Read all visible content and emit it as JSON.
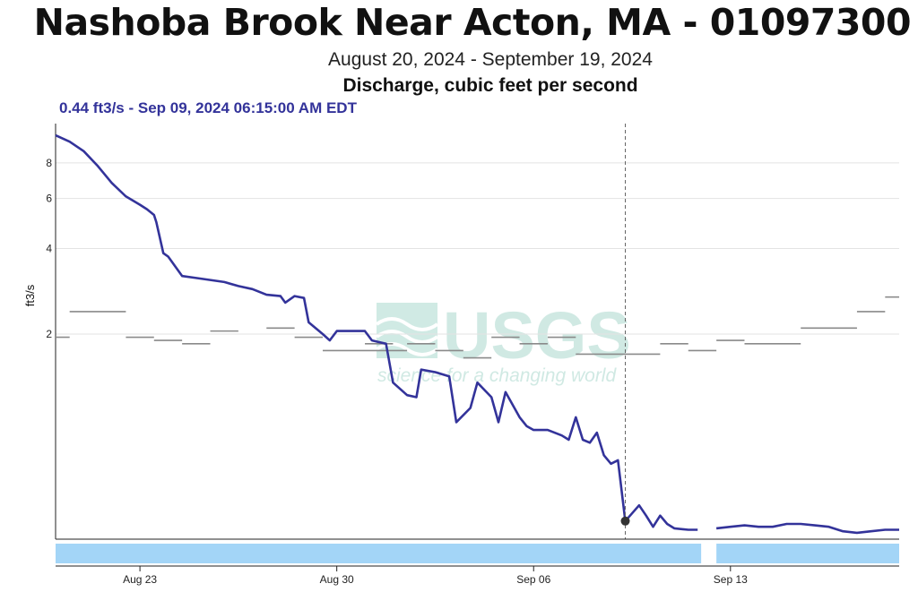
{
  "header": {
    "title": "Nashoba Brook Near Acton, MA - 01097300",
    "subtitle": "August 20, 2024 - September 19, 2024",
    "parameter": "Discharge, cubic feet per second"
  },
  "readout": {
    "text": "0.44 ft3/s - Sep 09, 2024 06:15:00 AM EDT",
    "value": 0.44,
    "time": "2024-09-09T06:15"
  },
  "watermark": {
    "text": "USGS",
    "tagline": "science for a changing world"
  },
  "colors": {
    "series": "#33339a",
    "median": "#8a8a8a",
    "approval_bar": "#a3d5f7",
    "gridline": "#e3e3e3",
    "crosshair": "#666666",
    "watermark": "#c8e6df"
  },
  "chart_data": {
    "type": "line",
    "y_scale": "log",
    "ylabel": "ft3/s",
    "ylim": [
      0.38,
      11
    ],
    "xlim": [
      "2024-08-20T00:00",
      "2024-09-19T00:00"
    ],
    "y_ticks": [
      2,
      4,
      6,
      8
    ],
    "x_ticks": [
      {
        "label": "Aug 23",
        "date": "2024-08-23T00:00"
      },
      {
        "label": "Aug 30",
        "date": "2024-08-30T00:00"
      },
      {
        "label": "Sep 06",
        "date": "2024-09-06T00:00"
      },
      {
        "label": "Sep 13",
        "date": "2024-09-13T00:00"
      }
    ],
    "grid": true,
    "series": [
      {
        "points": [
          [
            "2024-08-20T00:00",
            10.0
          ],
          [
            "2024-08-20T12:00",
            9.5
          ],
          [
            "2024-08-21T00:00",
            8.8
          ],
          [
            "2024-08-21T12:00",
            7.8
          ],
          [
            "2024-08-22T00:00",
            6.8
          ],
          [
            "2024-08-22T12:00",
            6.1
          ],
          [
            "2024-08-23T00:00",
            5.7
          ],
          [
            "2024-08-23T06:00",
            5.5
          ],
          [
            "2024-08-23T12:00",
            5.25
          ],
          [
            "2024-08-23T14:00",
            4.95
          ],
          [
            "2024-08-23T20:00",
            3.85
          ],
          [
            "2024-08-24T00:00",
            3.75
          ],
          [
            "2024-08-24T12:00",
            3.2
          ],
          [
            "2024-08-25T00:00",
            3.15
          ],
          [
            "2024-08-25T12:00",
            3.1
          ],
          [
            "2024-08-26T00:00",
            3.05
          ],
          [
            "2024-08-26T12:00",
            2.95
          ],
          [
            "2024-08-27T00:00",
            2.88
          ],
          [
            "2024-08-27T12:00",
            2.75
          ],
          [
            "2024-08-28T00:00",
            2.72
          ],
          [
            "2024-08-28T04:00",
            2.58
          ],
          [
            "2024-08-28T12:00",
            2.72
          ],
          [
            "2024-08-28T20:00",
            2.68
          ],
          [
            "2024-08-29T00:00",
            2.2
          ],
          [
            "2024-08-29T12:00",
            2.0
          ],
          [
            "2024-08-29T18:00",
            1.9
          ],
          [
            "2024-08-30T00:00",
            2.05
          ],
          [
            "2024-08-30T12:00",
            2.05
          ],
          [
            "2024-08-31T00:00",
            2.05
          ],
          [
            "2024-08-31T06:00",
            1.9
          ],
          [
            "2024-08-31T18:00",
            1.85
          ],
          [
            "2024-09-01T00:00",
            1.35
          ],
          [
            "2024-09-01T12:00",
            1.22
          ],
          [
            "2024-09-01T20:00",
            1.2
          ],
          [
            "2024-09-02T00:00",
            1.5
          ],
          [
            "2024-09-02T12:00",
            1.47
          ],
          [
            "2024-09-03T00:00",
            1.42
          ],
          [
            "2024-09-03T06:00",
            0.98
          ],
          [
            "2024-09-03T18:00",
            1.1
          ],
          [
            "2024-09-04T00:00",
            1.35
          ],
          [
            "2024-09-04T12:00",
            1.2
          ],
          [
            "2024-09-04T18:00",
            0.98
          ],
          [
            "2024-09-05T00:00",
            1.25
          ],
          [
            "2024-09-05T12:00",
            1.02
          ],
          [
            "2024-09-05T18:00",
            0.95
          ],
          [
            "2024-09-06T00:00",
            0.92
          ],
          [
            "2024-09-06T12:00",
            0.92
          ],
          [
            "2024-09-07T00:00",
            0.88
          ],
          [
            "2024-09-07T06:00",
            0.85
          ],
          [
            "2024-09-07T12:00",
            1.02
          ],
          [
            "2024-09-07T18:00",
            0.85
          ],
          [
            "2024-09-08T00:00",
            0.83
          ],
          [
            "2024-09-08T06:00",
            0.9
          ],
          [
            "2024-09-08T12:00",
            0.75
          ],
          [
            "2024-09-08T18:00",
            0.7
          ],
          [
            "2024-09-09T00:00",
            0.72
          ],
          [
            "2024-09-09T06:15",
            0.44
          ],
          [
            "2024-09-09T18:00",
            0.5
          ],
          [
            "2024-09-10T00:00",
            0.46
          ],
          [
            "2024-09-10T06:00",
            0.42
          ],
          [
            "2024-09-10T12:00",
            0.46
          ],
          [
            "2024-09-10T18:00",
            0.43
          ],
          [
            "2024-09-11T00:00",
            0.415
          ],
          [
            "2024-09-11T12:00",
            0.41
          ],
          [
            "2024-09-11T20:00",
            0.41
          ]
        ]
      },
      {
        "points": [
          [
            "2024-09-12T12:00",
            0.415
          ],
          [
            "2024-09-13T00:00",
            0.42
          ],
          [
            "2024-09-13T12:00",
            0.425
          ],
          [
            "2024-09-14T00:00",
            0.42
          ],
          [
            "2024-09-14T12:00",
            0.42
          ],
          [
            "2024-09-15T00:00",
            0.43
          ],
          [
            "2024-09-15T12:00",
            0.43
          ],
          [
            "2024-09-16T00:00",
            0.425
          ],
          [
            "2024-09-16T12:00",
            0.42
          ],
          [
            "2024-09-17T00:00",
            0.405
          ],
          [
            "2024-09-17T12:00",
            0.4
          ],
          [
            "2024-09-18T00:00",
            0.405
          ],
          [
            "2024-09-18T12:00",
            0.41
          ],
          [
            "2024-09-19T00:00",
            0.41
          ]
        ]
      }
    ],
    "median_segments": [
      {
        "start": "2024-08-20T00:00",
        "end": "2024-08-20T12:00",
        "value": 1.95
      },
      {
        "start": "2024-08-20T12:00",
        "end": "2024-08-22T12:00",
        "value": 2.4
      },
      {
        "start": "2024-08-22T12:00",
        "end": "2024-08-23T12:00",
        "value": 1.95
      },
      {
        "start": "2024-08-23T12:00",
        "end": "2024-08-24T12:00",
        "value": 1.9
      },
      {
        "start": "2024-08-24T12:00",
        "end": "2024-08-25T12:00",
        "value": 1.85
      },
      {
        "start": "2024-08-25T12:00",
        "end": "2024-08-26T12:00",
        "value": 2.05
      },
      {
        "start": "2024-08-27T12:00",
        "end": "2024-08-28T12:00",
        "value": 2.1
      },
      {
        "start": "2024-08-28T12:00",
        "end": "2024-08-29T12:00",
        "value": 1.95
      },
      {
        "start": "2024-08-29T12:00",
        "end": "2024-09-01T12:00",
        "value": 1.75
      },
      {
        "start": "2024-08-31T00:00",
        "end": "2024-09-01T00:00",
        "value": 1.85
      },
      {
        "start": "2024-09-01T12:00",
        "end": "2024-09-02T12:00",
        "value": 1.85
      },
      {
        "start": "2024-09-02T12:00",
        "end": "2024-09-03T12:00",
        "value": 1.75
      },
      {
        "start": "2024-09-03T12:00",
        "end": "2024-09-04T12:00",
        "value": 1.65
      },
      {
        "start": "2024-09-04T12:00",
        "end": "2024-09-05T12:00",
        "value": 1.95
      },
      {
        "start": "2024-09-05T12:00",
        "end": "2024-09-06T12:00",
        "value": 1.85
      },
      {
        "start": "2024-09-06T12:00",
        "end": "2024-09-07T12:00",
        "value": 1.95
      },
      {
        "start": "2024-09-07T12:00",
        "end": "2024-09-10T12:00",
        "value": 1.7
      },
      {
        "start": "2024-09-10T12:00",
        "end": "2024-09-11T12:00",
        "value": 1.85
      },
      {
        "start": "2024-09-11T12:00",
        "end": "2024-09-12T12:00",
        "value": 1.75
      },
      {
        "start": "2024-09-12T12:00",
        "end": "2024-09-13T12:00",
        "value": 1.9
      },
      {
        "start": "2024-09-13T12:00",
        "end": "2024-09-15T12:00",
        "value": 1.85
      },
      {
        "start": "2024-09-15T12:00",
        "end": "2024-09-17T12:00",
        "value": 2.1
      },
      {
        "start": "2024-09-17T12:00",
        "end": "2024-09-18T12:00",
        "value": 2.4
      },
      {
        "start": "2024-09-18T12:00",
        "end": "2024-09-19T00:00",
        "value": 2.7
      }
    ],
    "crosshair": {
      "time": "2024-09-09T06:15",
      "value": 0.44
    },
    "approval_bars": [
      {
        "start": "2024-08-20T00:00",
        "end": "2024-09-11T23:00"
      },
      {
        "start": "2024-09-12T12:00",
        "end": "2024-09-19T00:00"
      }
    ]
  }
}
